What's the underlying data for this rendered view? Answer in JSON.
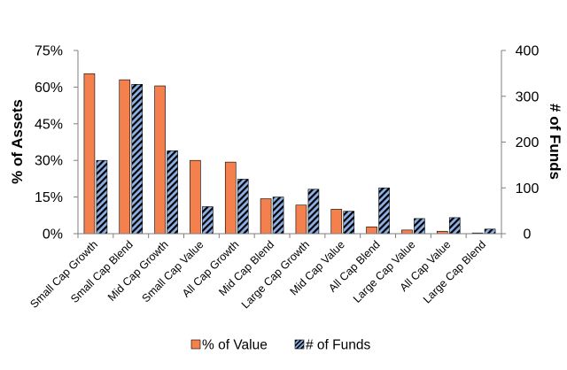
{
  "chart_data": {
    "type": "bar",
    "categories": [
      "Small Cap Growth",
      "Small Cap Blend",
      "Mid Cap Growth",
      "Small Cap Value",
      "All Cap Growth",
      "Mid Cap Blend",
      "Large Cap Growth",
      "Mid Cap Value",
      "All Cap Blend",
      "Large Cap Value",
      "All Cap Value",
      "Large Cap Blend"
    ],
    "series": [
      {
        "name": "% of Value",
        "axis": "left",
        "color": "#f4804d",
        "values": [
          65.5,
          63,
          60.5,
          30,
          29.3,
          14.3,
          11.7,
          10,
          2.8,
          1.5,
          1,
          0.3
        ]
      },
      {
        "name": "# of Funds",
        "axis": "right",
        "color": "#5b8fd6",
        "pattern": "diagonal-hatch-black",
        "values": [
          160,
          326,
          181,
          59,
          119,
          80,
          97,
          49,
          100,
          33,
          35,
          10
        ]
      }
    ],
    "ylabel": "% of Assets",
    "y2label": "# of Funds",
    "ylim": [
      0,
      75
    ],
    "y2lim": [
      0,
      400
    ],
    "y_ticks": [
      "0%",
      "15%",
      "30%",
      "45%",
      "60%",
      "75%"
    ],
    "y_tick_values": [
      0,
      15,
      30,
      45,
      60,
      75
    ],
    "y2_ticks": [
      "0",
      "100",
      "200",
      "300",
      "400"
    ],
    "y2_tick_values": [
      0,
      100,
      200,
      300,
      400
    ],
    "grid": false,
    "legend_position": "bottom-center",
    "axis_color": "#7f7f7f"
  }
}
